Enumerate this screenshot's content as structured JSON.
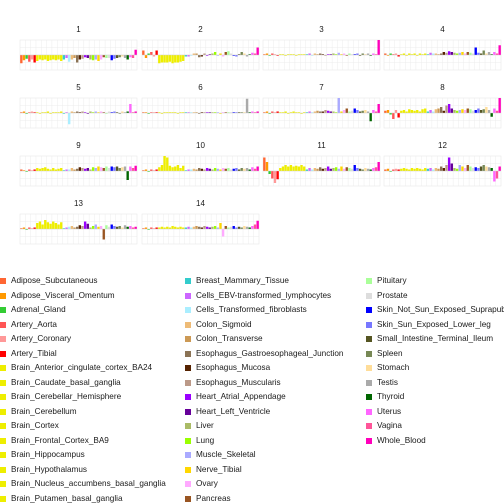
{
  "chart_data": {
    "type": "bar",
    "grid": true,
    "legend_position": "bottom",
    "tissues": [
      {
        "name": "Adipose_Subcutaneous",
        "color": "#FF6633"
      },
      {
        "name": "Adipose_Visceral_Omentum",
        "color": "#FF9900"
      },
      {
        "name": "Adrenal_Gland",
        "color": "#33CC33"
      },
      {
        "name": "Artery_Aorta",
        "color": "#FF5555"
      },
      {
        "name": "Artery_Coronary",
        "color": "#FF9999"
      },
      {
        "name": "Artery_Tibial",
        "color": "#FF0000"
      },
      {
        "name": "Brain_Anterior_cingulate_cortex_BA24",
        "color": "#EEEE00"
      },
      {
        "name": "Brain_Caudate_basal_ganglia",
        "color": "#EEEE00"
      },
      {
        "name": "Brain_Cerebellar_Hemisphere",
        "color": "#EEEE00"
      },
      {
        "name": "Brain_Cerebellum",
        "color": "#EEEE00"
      },
      {
        "name": "Brain_Cortex",
        "color": "#EEEE00"
      },
      {
        "name": "Brain_Frontal_Cortex_BA9",
        "color": "#EEEE00"
      },
      {
        "name": "Brain_Hippocampus",
        "color": "#EEEE00"
      },
      {
        "name": "Brain_Hypothalamus",
        "color": "#EEEE00"
      },
      {
        "name": "Brain_Nucleus_accumbens_basal_ganglia",
        "color": "#EEEE00"
      },
      {
        "name": "Brain_Putamen_basal_ganglia",
        "color": "#EEEE00"
      },
      {
        "name": "Breast_Mammary_Tissue",
        "color": "#33CCCC"
      },
      {
        "name": "Cells_EBV-transformed_lymphocytes",
        "color": "#CC66FF"
      },
      {
        "name": "Cells_Transformed_fibroblasts",
        "color": "#AAEEFF"
      },
      {
        "name": "Colon_Sigmoid",
        "color": "#EEBB77"
      },
      {
        "name": "Colon_Transverse",
        "color": "#CC9955"
      },
      {
        "name": "Esophagus_Gastroesophageal_Junction",
        "color": "#8B7355"
      },
      {
        "name": "Esophagus_Mucosa",
        "color": "#552200"
      },
      {
        "name": "Esophagus_Muscularis",
        "color": "#BB9988"
      },
      {
        "name": "Heart_Atrial_Appendage",
        "color": "#9900FF"
      },
      {
        "name": "Heart_Left_Ventricle",
        "color": "#660099"
      },
      {
        "name": "Liver",
        "color": "#AABB66"
      },
      {
        "name": "Lung",
        "color": "#99FF00"
      },
      {
        "name": "Muscle_Skeletal",
        "color": "#AAAAFF"
      },
      {
        "name": "Nerve_Tibial",
        "color": "#FFD700"
      },
      {
        "name": "Ovary",
        "color": "#FFAAFF"
      },
      {
        "name": "Pancreas",
        "color": "#995522"
      },
      {
        "name": "Pituitary",
        "color": "#AAFF99"
      },
      {
        "name": "Prostate",
        "color": "#DDDDDD"
      },
      {
        "name": "Skin_Not_Sun_Exposed_Suprapubic",
        "color": "#0000FF"
      },
      {
        "name": "Skin_Sun_Exposed_Lower_leg",
        "color": "#7777FF"
      },
      {
        "name": "Small_Intestine_Terminal_Ileum",
        "color": "#555522"
      },
      {
        "name": "Spleen",
        "color": "#778855"
      },
      {
        "name": "Stomach",
        "color": "#FFDD99"
      },
      {
        "name": "Testis",
        "color": "#AAAAAA"
      },
      {
        "name": "Thyroid",
        "color": "#006600"
      },
      {
        "name": "Uterus",
        "color": "#FF66FF"
      },
      {
        "name": "Vagina",
        "color": "#FF5599"
      },
      {
        "name": "Whole_Blood",
        "color": "#FF00BB"
      }
    ],
    "panels": [
      {
        "label": "1",
        "values": [
          -0.55,
          -0.35,
          -0.25,
          -0.45,
          -0.3,
          -0.5,
          -0.4,
          -0.3,
          -0.35,
          -0.3,
          -0.4,
          -0.35,
          -0.3,
          -0.35,
          -0.3,
          -0.4,
          -0.3,
          -0.2,
          -0.45,
          -0.3,
          -0.2,
          -0.5,
          -0.3,
          -0.25,
          -0.15,
          -0.2,
          -0.3,
          -0.35,
          -0.3,
          -0.4,
          -0.3,
          -0.15,
          -0.2,
          -0.2,
          -0.35,
          -0.25,
          -0.2,
          -0.15,
          -0.1,
          -0.2,
          -0.3,
          -0.15,
          -0.2,
          0.35
        ]
      },
      {
        "label": "2",
        "values": [
          0.3,
          -0.2,
          0.1,
          0.2,
          -0.1,
          0.3,
          -0.55,
          -0.5,
          -0.5,
          -0.5,
          -0.45,
          -0.55,
          -0.5,
          -0.5,
          -0.45,
          -0.4,
          -0.1,
          -0.1,
          -0.05,
          0.1,
          0.1,
          -0.15,
          -0.1,
          0.1,
          -0.05,
          0.05,
          0.1,
          0.2,
          -0.05,
          0.1,
          -0.1,
          0.2,
          0.25,
          0.1,
          -0.05,
          -0.1,
          0.05,
          0.2,
          0.1,
          -0.1,
          0.05,
          0.15,
          0.1,
          0.5
        ]
      },
      {
        "label": "3",
        "values": [
          0.05,
          0.1,
          -0.05,
          0.1,
          0.05,
          -0.05,
          0.05,
          0.05,
          -0.05,
          0.05,
          0.05,
          0.05,
          -0.05,
          0.05,
          0.05,
          0.05,
          0.05,
          0.1,
          -0.05,
          0.1,
          0.05,
          0.1,
          0.05,
          -0.05,
          0.05,
          0.05,
          0.1,
          0.05,
          0.15,
          0.05,
          0.1,
          -0.05,
          0.1,
          0.05,
          0.05,
          0.1,
          -0.05,
          0.1,
          0.05,
          0.1,
          -0.05,
          0.1,
          0.05,
          1.0
        ]
      },
      {
        "label": "4",
        "values": [
          0.1,
          -0.05,
          0.1,
          0.05,
          0.1,
          -0.1,
          0.05,
          0.1,
          -0.05,
          0.1,
          0.05,
          0.1,
          -0.05,
          0.1,
          0.05,
          0.1,
          0.05,
          0.15,
          0.1,
          0.1,
          0.05,
          0.1,
          0.2,
          0.15,
          0.25,
          0.2,
          0.15,
          0.1,
          0.15,
          0.2,
          0.1,
          0.2,
          0.15,
          0.1,
          0.5,
          0.15,
          0.1,
          0.3,
          0.1,
          0.2,
          0.05,
          0.2,
          0.1,
          0.65
        ]
      },
      {
        "label": "5",
        "values": [
          0.05,
          0.1,
          -0.05,
          0.05,
          0.1,
          0.05,
          0.05,
          -0.05,
          0.05,
          0.05,
          0.1,
          -0.05,
          0.05,
          0.05,
          0.05,
          0.1,
          -0.05,
          0.05,
          -0.75,
          0.1,
          0.05,
          0.1,
          0.05,
          0.1,
          0.05,
          -0.05,
          0.1,
          0.05,
          0.1,
          0.05,
          0.1,
          0.05,
          -0.05,
          0.1,
          0.05,
          0.1,
          0.05,
          -0.05,
          0.1,
          0.05,
          0.1,
          0.6,
          0.05,
          0.1
        ]
      },
      {
        "label": "6",
        "values": [
          0.05,
          0.05,
          -0.05,
          0.05,
          0.05,
          0.05,
          0.05,
          -0.05,
          0.05,
          0.05,
          0.05,
          0.05,
          0.05,
          -0.05,
          0.05,
          0.05,
          0.05,
          0.05,
          0.05,
          0.05,
          0.05,
          -0.05,
          0.05,
          0.05,
          0.05,
          0.05,
          0.05,
          0.05,
          0.05,
          -0.05,
          0.05,
          0.05,
          0.05,
          0.05,
          0.05,
          0.05,
          0.05,
          0.05,
          0.05,
          0.95,
          0.05,
          0.1,
          0.05,
          0.1
        ]
      },
      {
        "label": "7",
        "values": [
          0.05,
          0.1,
          -0.05,
          0.1,
          0.05,
          0.1,
          0.05,
          0.05,
          0.1,
          -0.05,
          0.05,
          0.1,
          0.05,
          0.05,
          -0.05,
          0.05,
          0.05,
          0.1,
          0.05,
          0.1,
          0.15,
          0.1,
          0.1,
          0.2,
          0.15,
          0.1,
          0.1,
          0.05,
          1.0,
          0.1,
          0.2,
          0.3,
          0.1,
          0.15,
          0.3,
          0.2,
          0.1,
          0.15,
          0.2,
          0.1,
          -0.55,
          0.2,
          0.1,
          0.6
        ]
      },
      {
        "label": "8",
        "values": [
          0.15,
          0.2,
          -0.1,
          -0.4,
          0.2,
          -0.3,
          0.15,
          0.2,
          0.1,
          0.25,
          0.2,
          0.15,
          0.2,
          0.1,
          0.25,
          0.3,
          0.1,
          0.2,
          0.1,
          0.25,
          0.3,
          0.4,
          0.15,
          0.5,
          0.6,
          0.3,
          0.2,
          0.15,
          0.2,
          0.25,
          0.2,
          0.3,
          0.25,
          0.15,
          0.2,
          0.3,
          0.2,
          0.25,
          0.4,
          0.2,
          -0.25,
          0.3,
          0.15,
          1.0
        ]
      },
      {
        "label": "9",
        "values": [
          0.1,
          0.05,
          -0.05,
          0.1,
          0.05,
          0.1,
          0.2,
          0.15,
          0.2,
          0.25,
          0.15,
          0.1,
          0.2,
          0.1,
          0.15,
          0.2,
          0.05,
          0.1,
          0.1,
          0.2,
          0.1,
          0.15,
          0.25,
          0.2,
          0.15,
          0.2,
          0.1,
          0.25,
          0.2,
          0.3,
          0.25,
          0.2,
          0.3,
          0.2,
          0.3,
          0.25,
          0.3,
          0.2,
          0.25,
          0.3,
          -0.6,
          0.3,
          0.2,
          0.35
        ]
      },
      {
        "label": "10",
        "values": [
          0.05,
          0.1,
          -0.05,
          0.1,
          0.05,
          0.1,
          0.25,
          0.4,
          1.0,
          0.9,
          0.35,
          0.25,
          0.3,
          0.4,
          0.2,
          0.35,
          0.05,
          0.1,
          0.1,
          0.15,
          0.1,
          0.2,
          0.15,
          0.1,
          0.2,
          0.15,
          0.1,
          0.2,
          0.15,
          0.1,
          0.2,
          0.15,
          0.2,
          0.1,
          0.15,
          0.2,
          0.1,
          0.2,
          0.15,
          0.2,
          0.1,
          0.25,
          0.15,
          0.3
        ]
      },
      {
        "label": "11",
        "values": [
          0.9,
          0.6,
          -0.2,
          -0.5,
          -0.8,
          -0.55,
          0.2,
          0.3,
          0.4,
          0.3,
          0.4,
          0.3,
          0.35,
          0.3,
          0.4,
          0.3,
          0.1,
          0.2,
          0.1,
          0.2,
          0.15,
          0.25,
          0.15,
          0.2,
          0.3,
          0.15,
          0.2,
          0.25,
          0.15,
          0.3,
          0.15,
          0.25,
          0.2,
          0.15,
          0.4,
          0.2,
          0.15,
          0.1,
          0.2,
          0.15,
          0.1,
          0.2,
          0.25,
          0.6
        ]
      },
      {
        "label": "12",
        "values": [
          0.1,
          0.15,
          -0.05,
          0.1,
          0.15,
          0.1,
          0.15,
          0.2,
          0.15,
          0.1,
          0.2,
          0.15,
          0.2,
          0.15,
          0.1,
          0.2,
          0.15,
          0.2,
          0.1,
          0.2,
          0.15,
          0.3,
          0.2,
          0.4,
          0.9,
          0.5,
          0.2,
          0.15,
          0.4,
          0.3,
          0.2,
          0.4,
          0.3,
          0.2,
          0.25,
          0.2,
          0.3,
          0.4,
          0.3,
          0.25,
          0.2,
          -0.7,
          -0.5,
          0.3
        ]
      },
      {
        "label": "13",
        "values": [
          0.05,
          0.1,
          -0.05,
          0.1,
          0.05,
          0.1,
          0.4,
          0.5,
          0.3,
          0.6,
          0.45,
          0.35,
          0.5,
          0.4,
          0.3,
          0.45,
          0.05,
          0.1,
          0.15,
          0.2,
          0.1,
          0.15,
          0.25,
          0.2,
          0.5,
          0.35,
          0.1,
          0.2,
          0.3,
          0.15,
          0.2,
          -0.7,
          0.25,
          0.15,
          0.3,
          0.2,
          0.15,
          0.2,
          0.1,
          0.25,
          0.15,
          0.2,
          0.1,
          0.15
        ]
      },
      {
        "label": "14",
        "values": [
          0.05,
          0.1,
          -0.05,
          0.1,
          0.05,
          0.1,
          0.1,
          0.15,
          0.1,
          0.15,
          0.1,
          0.2,
          0.15,
          0.1,
          0.15,
          0.1,
          0.1,
          0.15,
          0.1,
          0.15,
          0.2,
          0.15,
          0.1,
          0.2,
          0.15,
          0.1,
          0.15,
          0.2,
          0.1,
          0.4,
          -0.5,
          0.2,
          0.1,
          0.15,
          0.2,
          0.1,
          0.15,
          0.1,
          0.2,
          0.15,
          0.1,
          0.2,
          0.3,
          0.55
        ]
      }
    ]
  }
}
